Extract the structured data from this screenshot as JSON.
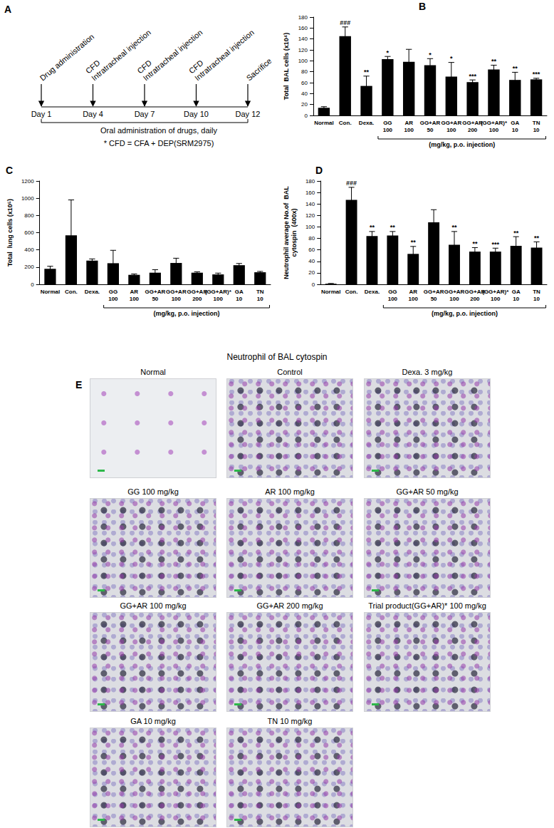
{
  "timeline": {
    "panel": "A",
    "events": [
      {
        "day": "Day 1",
        "labels": [
          "Drug administration"
        ]
      },
      {
        "day": "Day 4",
        "labels": [
          "CFD",
          "Intratracheal injection"
        ]
      },
      {
        "day": "Day 7",
        "labels": [
          "CFD",
          "Intratracheal injection"
        ]
      },
      {
        "day": "Day 10",
        "labels": [
          "CFD",
          "Intratracheal injection"
        ]
      },
      {
        "day": "Day 12",
        "labels": [
          "Sacrifice"
        ]
      }
    ],
    "span_label": "Oral administration of drugs, daily",
    "footnote": "* CFD = CFA +  DEP(SRM2975)"
  },
  "chart_data": [
    {
      "panel": "B",
      "type": "bar",
      "y_label": "Total  BAL cells (x10⁴)",
      "categories": [
        "Normal",
        "Con.",
        "Dexa.",
        "GG\n100",
        "AR\n100",
        "GG+AR\n50",
        "GG+AR\n100",
        "GG+AR\n200",
        "(GG+AR)*\n100",
        "GA\n10",
        "TN\n10"
      ],
      "values": [
        14,
        145,
        54,
        103,
        98,
        92,
        71,
        61,
        84,
        65,
        66
      ],
      "errors": [
        2,
        17,
        18,
        5,
        23,
        12,
        26,
        4,
        8,
        14,
        2
      ],
      "significance": [
        null,
        "###",
        "**",
        "*",
        null,
        "*",
        "*",
        "***",
        "**",
        "**",
        "***"
      ],
      "group": {
        "label": "(mg/kg, p.o. injection)",
        "from": "GG\n100",
        "to": "TN\n10"
      },
      "color": "#000000",
      "ylim": [
        0,
        180
      ],
      "yticks": [
        0,
        20,
        40,
        60,
        80,
        100,
        120,
        140,
        160,
        180
      ],
      "grid": false
    },
    {
      "panel": "C",
      "type": "bar",
      "y_label": "Total  lung cells (x10⁵)",
      "categories": [
        "Normal",
        "Con.",
        "Dexa.",
        "GG\n100",
        "AR\n100",
        "GG+AR\n50",
        "GG+AR\n100",
        "GG+AR\n200",
        "(GG+AR)*\n100",
        "GA\n10",
        "TN\n10"
      ],
      "values": [
        180,
        570,
        275,
        245,
        110,
        135,
        248,
        135,
        115,
        222,
        140
      ],
      "errors": [
        30,
        410,
        20,
        150,
        10,
        35,
        55,
        10,
        15,
        20,
        10
      ],
      "group": {
        "label": "(mg/kg, p.o. injection)",
        "from": "GG\n100",
        "to": "TN\n10"
      },
      "color": "#000000",
      "ylim": [
        0,
        1200
      ],
      "yticks": [
        0,
        200,
        400,
        600,
        800,
        1000,
        1200
      ],
      "grid": false
    },
    {
      "panel": "D",
      "type": "bar",
      "y_label": "Neutrophil average No.of  BAL\ncytospin  (400x)",
      "categories": [
        "Normal",
        "Con.",
        "Dexa.",
        "GG\n100",
        "AR\n100",
        "GG+AR\n50",
        "GG+AR\n100",
        "GG+AR\n200",
        "(GG+AR)*\n100",
        "GA\n10",
        "TN\n10"
      ],
      "values": [
        1,
        147,
        84,
        85,
        53,
        108,
        69,
        57,
        57,
        67,
        64
      ],
      "errors": [
        0.5,
        22,
        8,
        7,
        13,
        22,
        23,
        7,
        6,
        16,
        10
      ],
      "significance": [
        null,
        "###",
        "**",
        "**",
        "**",
        null,
        "**",
        "**",
        "***",
        "**",
        "**"
      ],
      "group": {
        "label": "(mg/kg, p.o. injection)",
        "from": "GG\n100",
        "to": "TN\n10"
      },
      "color": "#000000",
      "ylim": [
        0,
        180
      ],
      "yticks": [
        0,
        20,
        40,
        60,
        80,
        100,
        120,
        140,
        160,
        180
      ],
      "grid": false
    }
  ],
  "micrographs": {
    "panel": "E",
    "title": "Neutrophil of BAL cytospin",
    "images": [
      "Normal",
      "Control",
      "Dexa. 3 mg/kg",
      "GG 100 mg/kg",
      "AR 100 mg/kg",
      "GG+AR 50 mg/kg",
      "GG+AR 100 mg/kg",
      "GG+AR 200 mg/kg",
      "Trial product(GG+AR)*  100 mg/kg",
      "GA 10 mg/kg",
      "TN 10 mg/kg"
    ]
  }
}
